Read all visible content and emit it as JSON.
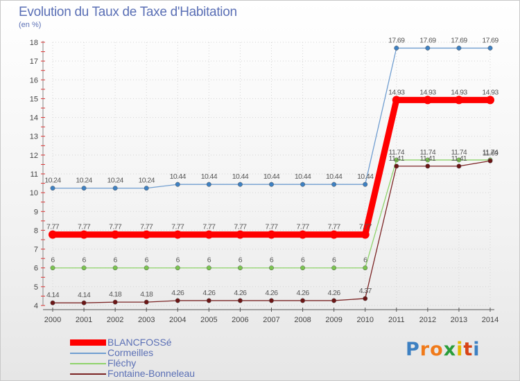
{
  "chart_data": {
    "type": "line",
    "title": "Evolution du Taux de Taxe d'Habitation",
    "subtitle": "(en %)",
    "ylim": [
      4,
      18
    ],
    "yticks": [
      4,
      5,
      6,
      7,
      8,
      9,
      10,
      11,
      12,
      13,
      14,
      15,
      16,
      17,
      18
    ],
    "x": [
      "2000",
      "2001",
      "2002",
      "2003",
      "2004",
      "2005",
      "2006",
      "2007",
      "2008",
      "2009",
      "2010",
      "2011",
      "2012",
      "2013",
      "2014"
    ],
    "series": [
      {
        "name": "Cormeilles",
        "color": "#6f9dd0",
        "marker": "#3d80c2",
        "values": [
          10.24,
          10.24,
          10.24,
          10.24,
          10.44,
          10.44,
          10.44,
          10.44,
          10.44,
          10.44,
          10.44,
          17.69,
          17.69,
          17.69,
          17.69
        ]
      },
      {
        "name": "Fléchy",
        "color": "#8ed36a",
        "marker": "#7ac34f",
        "values": [
          6,
          6,
          6,
          6,
          6,
          6,
          6,
          6,
          6,
          6,
          6,
          11.74,
          11.74,
          11.74,
          11.74
        ]
      },
      {
        "name": "Fontaine-Bonneleau",
        "color": "#7a2323",
        "marker": "#6b1515",
        "values": [
          4.14,
          4.14,
          4.18,
          4.18,
          4.26,
          4.26,
          4.26,
          4.26,
          4.26,
          4.26,
          4.37,
          11.41,
          11.41,
          11.41,
          11.69
        ]
      },
      {
        "name": "BLANCFOSSé",
        "color": "#ff0000",
        "marker": "#ff0000",
        "thick": true,
        "values": [
          7.77,
          7.77,
          7.77,
          7.77,
          7.77,
          7.77,
          7.77,
          7.77,
          7.77,
          7.77,
          7.77,
          14.93,
          14.93,
          14.93,
          14.93
        ]
      }
    ],
    "legend_order": [
      "BLANCFOSSé",
      "Cormeilles",
      "Fléchy",
      "Fontaine-Bonneleau"
    ]
  },
  "brand": {
    "letters": [
      "P",
      "r",
      "o",
      "x",
      "i",
      "t",
      "i"
    ],
    "colors": [
      "#3d80c2",
      "#f07a1a",
      "#f07a1a",
      "#2a9d3a",
      "#e6b800",
      "#d84315",
      "#3d80c2"
    ]
  }
}
